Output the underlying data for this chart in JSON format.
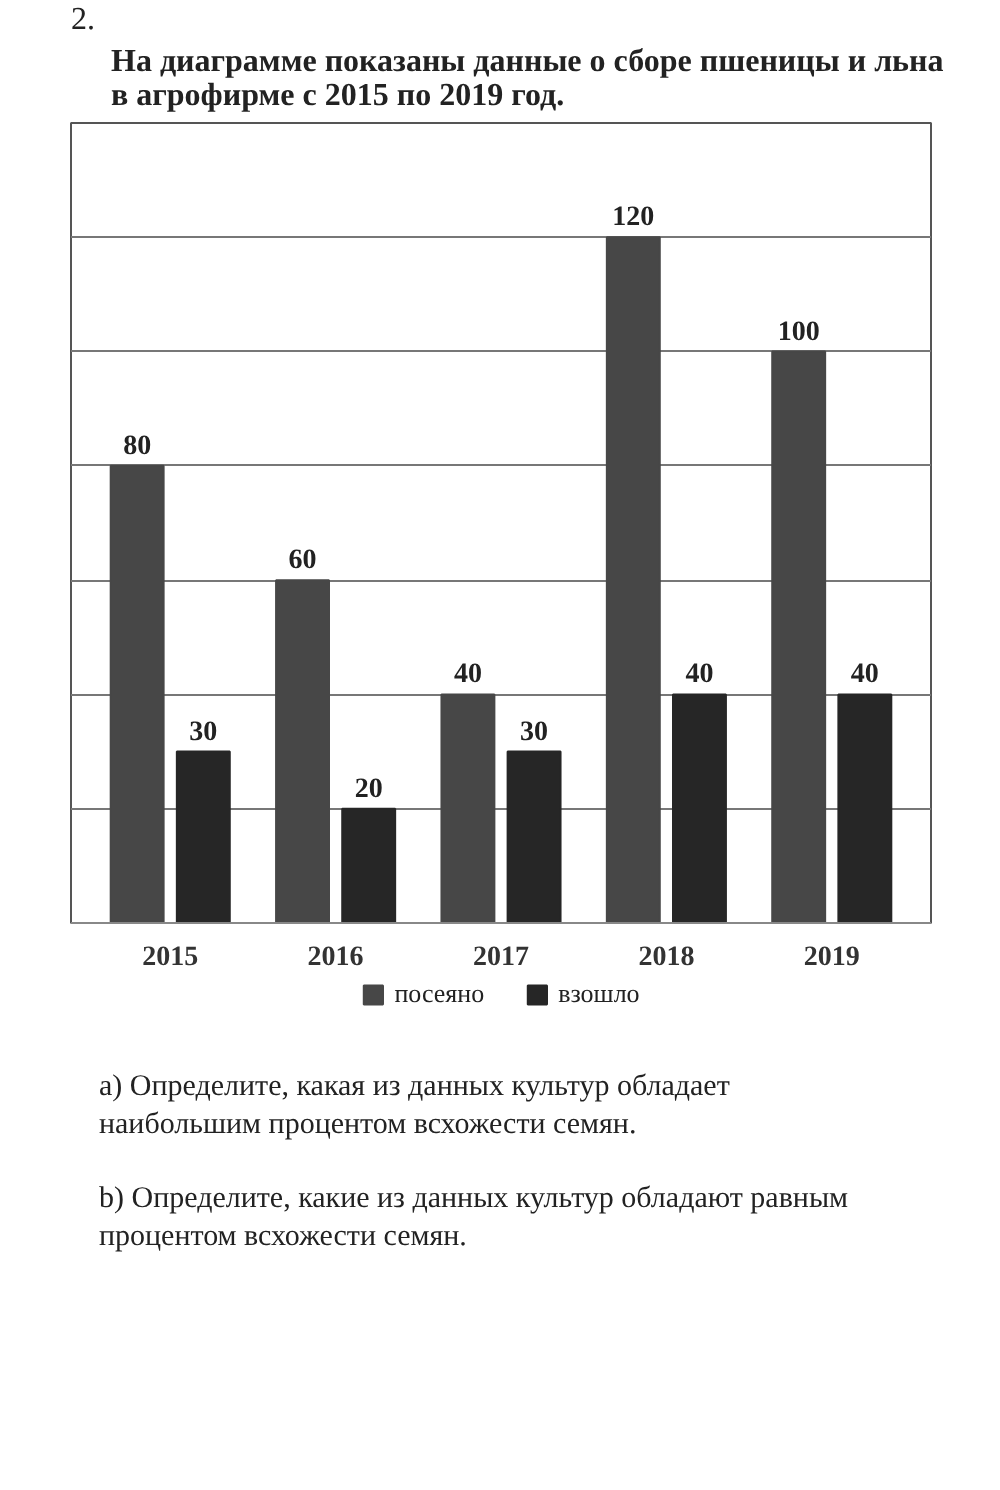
{
  "chart_data": {
    "type": "bar",
    "title": "На диаграмме показаны данные о сборе пшеницы и льна в агрофирме с 2015 по 2019 год.",
    "annotations": [
      "2.",
      "a) Определите, какая из данных культур обладает наибольшим процентом всхожести семян.",
      "b) Определите, какие из данных культур обладают равным процентом всхожести семян."
    ],
    "categories": [
      "2015",
      "2016",
      "2017",
      "2018",
      "2019"
    ],
    "series": [
      {
        "name": "посеяно",
        "color": "#474747",
        "values": [
          80,
          60,
          40,
          120,
          100
        ]
      },
      {
        "name": "взошло",
        "color": "#262626",
        "values": [
          30,
          20,
          30,
          40,
          40
        ]
      }
    ],
    "ylim": [
      0,
      140
    ],
    "yticks": [
      {
        "value": 0,
        "label": null
      },
      {
        "value": 20,
        "label": null
      },
      {
        "value": 40,
        "label": null
      },
      {
        "value": 60,
        "label": null
      },
      {
        "value": 80,
        "label": null
      },
      {
        "value": 100,
        "label": null
      },
      {
        "value": 120,
        "label": null
      },
      {
        "value": 140,
        "label": null
      }
    ],
    "tick_labels": "x",
    "grid": "y",
    "legend": "bottom",
    "data_labels": true
  }
}
